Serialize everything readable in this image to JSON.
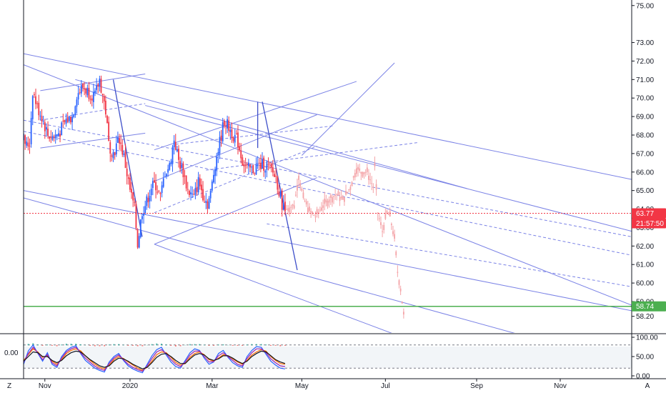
{
  "chart_data": {
    "type": "candlestick",
    "price_axis": {
      "ticks": [
        75.0,
        73.0,
        72.0,
        71.0,
        70.0,
        69.0,
        68.0,
        67.0,
        66.0,
        65.0,
        64.0,
        63.0,
        62.0,
        61.0,
        60.0,
        59.0,
        58.2
      ],
      "range": [
        57.3,
        75.3
      ]
    },
    "time_axis": {
      "labels": [
        "Nov",
        "2020",
        "Mar",
        "May",
        "Jul",
        "Sep",
        "Nov"
      ],
      "range": [
        0,
        400
      ],
      "label_positions": [
        14,
        70,
        124,
        183,
        238,
        298,
        353
      ]
    },
    "current_price": {
      "value": 63.77,
      "label": "63.77",
      "countdown": "21:57:50",
      "color": "#f23645"
    },
    "support_level": {
      "value": 58.74,
      "label": "58.74",
      "color": "#4caf50"
    },
    "candles": {
      "bull_color": "#2962ff",
      "bear_color": "#f23645",
      "anchors": [
        [
          0,
          67.8
        ],
        [
          2,
          67.4
        ],
        [
          4,
          67.6
        ],
        [
          6,
          70.4
        ],
        [
          9,
          69.5
        ],
        [
          12,
          69.0
        ],
        [
          16,
          68.0
        ],
        [
          20,
          67.9
        ],
        [
          24,
          68.2
        ],
        [
          28,
          68.8
        ],
        [
          32,
          69.0
        ],
        [
          35,
          70.2
        ],
        [
          39,
          70.6
        ],
        [
          43,
          70.3
        ],
        [
          47,
          70.1
        ],
        [
          50,
          71.0
        ],
        [
          54,
          69.3
        ],
        [
          56,
          67.5
        ],
        [
          59,
          67.0
        ],
        [
          63,
          67.8
        ],
        [
          66,
          66.8
        ],
        [
          70,
          65.0
        ],
        [
          73,
          64.0
        ],
        [
          75,
          62.1
        ],
        [
          78,
          63.9
        ],
        [
          81,
          64.4
        ],
        [
          84,
          65.2
        ],
        [
          87,
          65.3
        ],
        [
          90,
          64.6
        ],
        [
          93,
          66.0
        ],
        [
          96,
          66.3
        ],
        [
          99,
          67.8
        ],
        [
          102,
          66.6
        ],
        [
          105,
          66.0
        ],
        [
          108,
          65.0
        ],
        [
          112,
          64.6
        ],
        [
          115,
          65.5
        ],
        [
          118,
          64.8
        ],
        [
          121,
          64.3
        ],
        [
          123,
          64.8
        ],
        [
          126,
          66.5
        ],
        [
          129,
          67.6
        ],
        [
          132,
          68.8
        ],
        [
          135,
          68.4
        ],
        [
          138,
          68.0
        ],
        [
          141,
          67.6
        ],
        [
          144,
          66.6
        ],
        [
          147,
          66.2
        ],
        [
          150,
          66.1
        ],
        [
          154,
          66.3
        ],
        [
          158,
          66.4
        ],
        [
          162,
          66.2
        ],
        [
          166,
          65.7
        ],
        [
          170,
          64.3
        ],
        [
          172,
          63.9
        ]
      ]
    },
    "forecast": {
      "color": "#f4a3a7",
      "anchors": [
        [
          173,
          64.0
        ],
        [
          178,
          64.2
        ],
        [
          181,
          65.8
        ],
        [
          184,
          64.6
        ],
        [
          188,
          63.9
        ],
        [
          192,
          63.6
        ],
        [
          197,
          64.2
        ],
        [
          202,
          64.6
        ],
        [
          206,
          64.8
        ],
        [
          210,
          64.5
        ],
        [
          215,
          65.2
        ],
        [
          219,
          66.2
        ],
        [
          222,
          66.0
        ],
        [
          226,
          66.0
        ],
        [
          230,
          65.2
        ],
        [
          231,
          66.3
        ],
        [
          233,
          63.8
        ],
        [
          236,
          62.8
        ],
        [
          239,
          63.8
        ],
        [
          241,
          63.6
        ],
        [
          244,
          62.4
        ],
        [
          246,
          60.6
        ],
        [
          248,
          59.7
        ],
        [
          250,
          58.3
        ]
      ]
    },
    "drawings": {
      "channel_color": "#7b83e6",
      "trend_color": "#3d4ec9",
      "channel_lines": [
        [
          [
            0,
            72.4
          ],
          [
            400,
            65.6
          ]
        ],
        [
          [
            0,
            71.8
          ],
          [
            400,
            58.8
          ]
        ],
        [
          [
            0,
            65.0
          ],
          [
            400,
            58.5
          ]
        ],
        [
          [
            0,
            64.6
          ],
          [
            340,
            56.9
          ]
        ],
        [
          [
            11,
            67.3
          ],
          [
            80,
            68.1
          ]
        ],
        [
          [
            11,
            70.4
          ],
          [
            80,
            71.3
          ]
        ],
        [
          [
            86,
            62.1
          ],
          [
            193,
            65.7
          ]
        ],
        [
          [
            86,
            65.5
          ],
          [
            193,
            69.1
          ]
        ],
        [
          [
            183,
            66.9
          ],
          [
            244,
            71.9
          ]
        ],
        [
          [
            86,
            67.2
          ],
          [
            219,
            70.9
          ]
        ],
        [
          [
            80,
            69.6
          ],
          [
            400,
            62.8
          ]
        ],
        [
          [
            86,
            62.1
          ],
          [
            245,
            57.2
          ]
        ],
        [
          [
            34,
            71.0
          ],
          [
            292,
            65.1
          ]
        ]
      ],
      "dashed_lines": [
        [
          [
            11,
            68.8
          ],
          [
            80,
            69.7
          ]
        ],
        [
          [
            86,
            63.8
          ],
          [
            193,
            67.4
          ]
        ],
        [
          [
            100,
            67.5
          ],
          [
            204,
            68.5
          ]
        ],
        [
          [
            0,
            68.8
          ],
          [
            400,
            62.5
          ]
        ],
        [
          [
            0,
            68.2
          ],
          [
            400,
            61.5
          ]
        ],
        [
          [
            120,
            66.1
          ],
          [
            260,
            67.6
          ]
        ],
        [
          [
            160,
            63.2
          ],
          [
            400,
            59.8
          ]
        ]
      ],
      "trend_lines": [
        [
          [
            59,
            71.0
          ],
          [
            78,
            62.5
          ]
        ],
        [
          [
            157,
            69.8
          ],
          [
            180,
            60.7
          ]
        ],
        [
          [
            154,
            69.8
          ],
          [
            154,
            67.3
          ]
        ]
      ]
    },
    "oscillator": {
      "zero_label": "0.00",
      "ticks": [
        100.0,
        50.0,
        0.0
      ],
      "tick_labels": [
        "100.00",
        "50.00",
        "0.00"
      ],
      "band_upper": 80,
      "band_lower": 20,
      "series": [
        {
          "color": "#ff6d00",
          "values": [
            40,
            55,
            70,
            62,
            48,
            52,
            38,
            30,
            42,
            58,
            66,
            70,
            65,
            52,
            40,
            30,
            22,
            18,
            28,
            42,
            50,
            45,
            36,
            28,
            20,
            14,
            22,
            38,
            55,
            62,
            60,
            48,
            35,
            28,
            32,
            48,
            58,
            62,
            55,
            42,
            38,
            46,
            55,
            52,
            44,
            36,
            30,
            40,
            54,
            62,
            68,
            64,
            50,
            40,
            32,
            30
          ]
        },
        {
          "color": "#2962ff",
          "values": [
            30,
            65,
            80,
            58,
            38,
            60,
            30,
            22,
            50,
            66,
            74,
            78,
            58,
            40,
            30,
            20,
            14,
            10,
            36,
            50,
            58,
            40,
            26,
            18,
            12,
            8,
            30,
            52,
            68,
            74,
            54,
            36,
            24,
            20,
            40,
            60,
            70,
            66,
            46,
            30,
            36,
            58,
            66,
            48,
            34,
            26,
            22,
            50,
            66,
            76,
            74,
            56,
            38,
            28,
            20,
            18
          ]
        },
        {
          "color": "#9c27b0",
          "values": [
            35,
            58,
            74,
            60,
            42,
            55,
            34,
            26,
            46,
            62,
            70,
            74,
            60,
            46,
            35,
            25,
            18,
            14,
            32,
            46,
            54,
            42,
            30,
            22,
            16,
            12,
            26,
            45,
            62,
            68,
            58,
            42,
            30,
            24,
            36,
            54,
            64,
            64,
            50,
            36,
            37,
            52,
            60,
            50,
            40,
            30,
            26,
            45,
            60,
            70,
            70,
            60,
            44,
            34,
            26,
            24
          ]
        },
        {
          "color": "#131722",
          "values": [
            38,
            50,
            62,
            60,
            50,
            50,
            40,
            34,
            40,
            52,
            60,
            64,
            62,
            52,
            42,
            34,
            26,
            22,
            26,
            38,
            46,
            44,
            38,
            30,
            24,
            18,
            22,
            34,
            48,
            56,
            58,
            50,
            40,
            32,
            32,
            44,
            54,
            58,
            54,
            44,
            40,
            44,
            52,
            52,
            46,
            38,
            32,
            38,
            50,
            58,
            64,
            62,
            52,
            42,
            36,
            32
          ]
        }
      ],
      "hist_pos_color": "#26a69a",
      "hist_neg_color": "#ef5350"
    }
  },
  "corner_labels": {
    "bottom_left": "Z",
    "bottom_right": "A"
  }
}
